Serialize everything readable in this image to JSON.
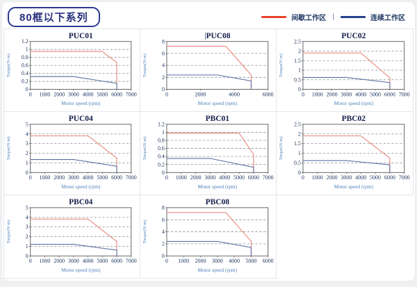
{
  "header": {
    "title": "80框以下系列",
    "legend": {
      "intermittent_label": "间歇工作区",
      "separator": "|",
      "continuous_label": "连续工作区",
      "intermittent_color": "#e8432a",
      "continuous_color": "#27418c"
    }
  },
  "colors": {
    "intermittent_line": "#e9867c",
    "continuous_line": "#5c6fa3",
    "grid_line": "#8f8f8f",
    "plot_border": "#555555",
    "tick_text": "#1f3864",
    "axis_label_text": "#4a7ebb",
    "title_text": "#141d4a",
    "cell_border": "#e3e6ea"
  },
  "chart_data": [
    {
      "type": "line",
      "title": "PUC01",
      "title_prefix": "",
      "xlabel": "Motor speed (rpm)",
      "ylabel": "Torque(N·m)",
      "xlim": [
        0,
        7000
      ],
      "xtick_step": 1000,
      "ylim": [
        0,
        1.2
      ],
      "ytick_step": 0.2,
      "grid": "horizontal-dashed",
      "legend_position": "none",
      "series": [
        {
          "name": "间歇工作区",
          "role": "intermittent",
          "points": [
            [
              0,
              0.95
            ],
            [
              5000,
              0.95
            ],
            [
              6000,
              0.67
            ],
            [
              6000,
              0
            ]
          ]
        },
        {
          "name": "连续工作区",
          "role": "continuous",
          "points": [
            [
              0,
              0.32
            ],
            [
              3000,
              0.32
            ],
            [
              6000,
              0.15
            ],
            [
              6000,
              0
            ]
          ]
        }
      ]
    },
    {
      "type": "line",
      "title": "PUC08",
      "title_prefix": "|",
      "xlabel": "Motor speed (rpm)",
      "ylabel": "Torque(N·m)",
      "xlim": [
        0,
        6000
      ],
      "xtick_step": 2000,
      "ylim": [
        0,
        8
      ],
      "ytick_step": 2,
      "grid": "horizontal-dashed",
      "legend_position": "none",
      "series": [
        {
          "name": "间歇工作区",
          "role": "intermittent",
          "points": [
            [
              0,
              7.2
            ],
            [
              3500,
              7.2
            ],
            [
              5000,
              2.4
            ],
            [
              5000,
              0
            ]
          ]
        },
        {
          "name": "连续工作区",
          "role": "continuous",
          "points": [
            [
              0,
              2.4
            ],
            [
              3000,
              2.4
            ],
            [
              5000,
              1.4
            ],
            [
              5000,
              0
            ]
          ]
        }
      ]
    },
    {
      "type": "line",
      "title": "PUC02",
      "title_prefix": "",
      "xlabel": "Motor speed (rpm)",
      "ylabel": "Torque(N·m)",
      "xlim": [
        0,
        7000
      ],
      "xtick_step": 1000,
      "ylim": [
        0,
        2.5
      ],
      "ytick_step": 0.5,
      "grid": "horizontal-dashed",
      "legend_position": "none",
      "series": [
        {
          "name": "间歇工作区",
          "role": "intermittent",
          "points": [
            [
              0,
              1.9
            ],
            [
              4000,
              1.9
            ],
            [
              6000,
              0.6
            ],
            [
              6000,
              0
            ]
          ]
        },
        {
          "name": "连续工作区",
          "role": "continuous",
          "points": [
            [
              0,
              0.62
            ],
            [
              3000,
              0.62
            ],
            [
              6000,
              0.35
            ],
            [
              6000,
              0
            ]
          ]
        }
      ]
    },
    {
      "type": "line",
      "title": "PUC04",
      "title_prefix": "",
      "xlabel": "Motor speed (rpm)",
      "ylabel": "Torque(N·m)",
      "xlim": [
        0,
        7000
      ],
      "xtick_step": 1000,
      "ylim": [
        0,
        5
      ],
      "ytick_step": 1,
      "grid": "horizontal-dashed",
      "legend_position": "none",
      "series": [
        {
          "name": "间歇工作区",
          "role": "intermittent",
          "points": [
            [
              0,
              3.8
            ],
            [
              4000,
              3.8
            ],
            [
              6000,
              1.5
            ],
            [
              6000,
              0
            ]
          ]
        },
        {
          "name": "连续工作区",
          "role": "continuous",
          "points": [
            [
              0,
              1.35
            ],
            [
              3000,
              1.35
            ],
            [
              6000,
              0.65
            ],
            [
              6000,
              0
            ]
          ]
        }
      ]
    },
    {
      "type": "line",
      "title": "PBC01",
      "title_prefix": "",
      "xlabel": "Motor speed (rpm)",
      "ylabel": "Torque(N·m)",
      "xlim": [
        0,
        7000
      ],
      "xtick_step": 1000,
      "ylim": [
        0,
        1.2
      ],
      "ytick_step": 0.2,
      "grid": "horizontal-dashed",
      "legend_position": "none",
      "series": [
        {
          "name": "间歇工作区",
          "role": "intermittent",
          "points": [
            [
              0,
              0.98
            ],
            [
              5000,
              0.98
            ],
            [
              6000,
              0.45
            ],
            [
              6000,
              0
            ]
          ]
        },
        {
          "name": "连续工作区",
          "role": "continuous",
          "points": [
            [
              0,
              0.35
            ],
            [
              3000,
              0.35
            ],
            [
              6000,
              0.13
            ],
            [
              6000,
              0
            ]
          ]
        }
      ]
    },
    {
      "type": "line",
      "title": "PBC02",
      "title_prefix": "",
      "xlabel": "Motor speed (rpm)",
      "ylabel": "Torque(N·m)",
      "xlim": [
        0,
        7000
      ],
      "xtick_step": 1000,
      "ylim": [
        0,
        2.5
      ],
      "ytick_step": 0.5,
      "grid": "horizontal-dashed",
      "legend_position": "none",
      "series": [
        {
          "name": "间歇工作区",
          "role": "intermittent",
          "points": [
            [
              0,
              1.9
            ],
            [
              4000,
              1.9
            ],
            [
              6000,
              0.75
            ],
            [
              6000,
              0
            ]
          ]
        },
        {
          "name": "连续工作区",
          "role": "continuous",
          "points": [
            [
              0,
              0.62
            ],
            [
              3000,
              0.62
            ],
            [
              6000,
              0.4
            ],
            [
              6000,
              0
            ]
          ]
        }
      ]
    },
    {
      "type": "line",
      "title": "PBC04",
      "title_prefix": "",
      "xlabel": "Motor speed (rpm)",
      "ylabel": "Torque(N·m)",
      "xlim": [
        0,
        7000
      ],
      "xtick_step": 1000,
      "ylim": [
        0,
        5
      ],
      "ytick_step": 1,
      "grid": "horizontal-dashed",
      "legend_position": "none",
      "series": [
        {
          "name": "间歇工作区",
          "role": "intermittent",
          "points": [
            [
              0,
              3.82
            ],
            [
              4000,
              3.82
            ],
            [
              6000,
              1.5
            ],
            [
              6000,
              0
            ]
          ]
        },
        {
          "name": "连续工作区",
          "role": "continuous",
          "points": [
            [
              0,
              1.2
            ],
            [
              3000,
              1.2
            ],
            [
              6000,
              0.6
            ],
            [
              6000,
              0
            ]
          ]
        }
      ]
    },
    {
      "type": "line",
      "title": "PBC08",
      "title_prefix": "",
      "xlabel": "Motor speed (rpm)",
      "ylabel": "Torque(N·m)",
      "xlim": [
        0,
        6000
      ],
      "xtick_step": 1000,
      "ylim": [
        0,
        8
      ],
      "ytick_step": 2,
      "grid": "horizontal-dashed",
      "legend_position": "none",
      "series": [
        {
          "name": "间歇工作区",
          "role": "intermittent",
          "points": [
            [
              0,
              7.2
            ],
            [
              3500,
              7.2
            ],
            [
              5000,
              2.4
            ],
            [
              5000,
              0
            ]
          ]
        },
        {
          "name": "连续工作区",
          "role": "continuous",
          "points": [
            [
              0,
              2.4
            ],
            [
              3000,
              2.4
            ],
            [
              5000,
              1.4
            ],
            [
              5000,
              0
            ]
          ]
        }
      ]
    }
  ]
}
